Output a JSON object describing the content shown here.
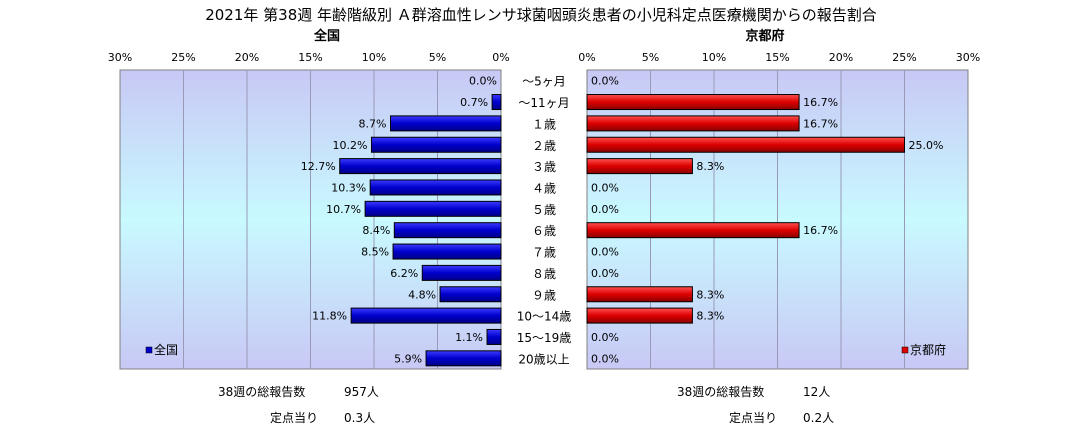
{
  "title": "2021年 第38週 年齢階級別 Ａ群溶血性レンサ球菌咽頭炎患者の小児科定点医療機関からの報告割合",
  "colors": {
    "national_bar": "#0000cc",
    "prefecture_bar": "#dd0000",
    "plot_bg_top": "#c8c8f5",
    "plot_bg_mid": "#c8faff"
  },
  "chart_data": {
    "type": "bar",
    "orientation": "horizontal-butterfly",
    "categories": [
      "～5ヶ月",
      "～11ヶ月",
      "１歳",
      "２歳",
      "３歳",
      "４歳",
      "５歳",
      "６歳",
      "７歳",
      "８歳",
      "９歳",
      "10～14歳",
      "15～19歳",
      "20歳以上"
    ],
    "panels": [
      {
        "name": "全国",
        "direction": "left",
        "xlim": [
          0,
          30
        ],
        "ticks": [
          0,
          5,
          10,
          15,
          20,
          25,
          30
        ],
        "tick_labels": [
          "0%",
          "5%",
          "10%",
          "15%",
          "20%",
          "25%",
          "30%"
        ],
        "values": [
          0.0,
          0.7,
          8.7,
          10.2,
          12.7,
          10.3,
          10.7,
          8.4,
          8.5,
          6.2,
          4.8,
          11.8,
          1.1,
          5.9
        ],
        "value_labels": [
          "0.0%",
          "0.7%",
          "8.7%",
          "10.2%",
          "12.7%",
          "10.3%",
          "10.7%",
          "8.4%",
          "8.5%",
          "6.2%",
          "4.8%",
          "11.8%",
          "1.1%",
          "5.9%"
        ],
        "legend": "全国",
        "legend_placement": "bottom-left"
      },
      {
        "name": "京都府",
        "direction": "right",
        "xlim": [
          0,
          30
        ],
        "ticks": [
          0,
          5,
          10,
          15,
          20,
          25,
          30
        ],
        "tick_labels": [
          "0%",
          "5%",
          "10%",
          "15%",
          "20%",
          "25%",
          "30%"
        ],
        "values": [
          0.0,
          16.7,
          16.7,
          25.0,
          8.3,
          0.0,
          0.0,
          16.7,
          0.0,
          0.0,
          8.3,
          8.3,
          0.0,
          0.0
        ],
        "value_labels": [
          "0.0%",
          "16.7%",
          "16.7%",
          "25.0%",
          "8.3%",
          "0.0%",
          "0.0%",
          "16.7%",
          "0.0%",
          "0.0%",
          "8.3%",
          "8.3%",
          "0.0%",
          "0.0%"
        ],
        "legend": "京都府",
        "legend_placement": "bottom-right"
      }
    ],
    "grid": true
  },
  "stats": {
    "national": {
      "total_label": "38週の総報告数",
      "total_value": "957人",
      "per_label": "定点当り",
      "per_value": "0.3人"
    },
    "prefecture": {
      "total_label": "38週の総報告数",
      "total_value": "12人",
      "per_label": "定点当り",
      "per_value": "0.2人"
    }
  }
}
